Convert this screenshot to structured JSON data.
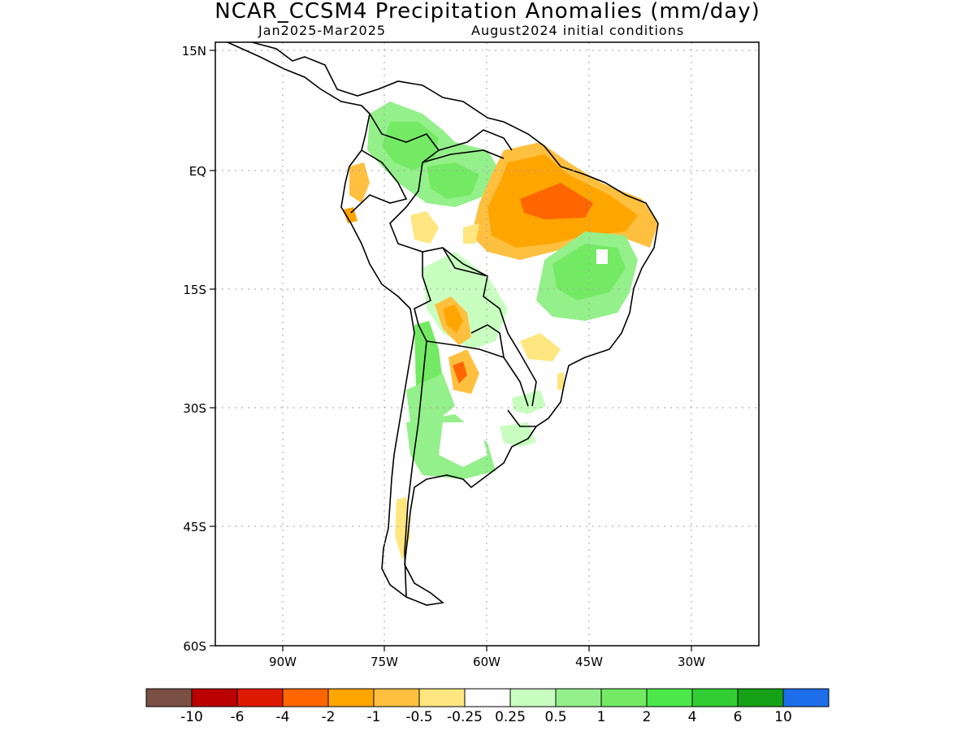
{
  "title": "NCAR_CCSM4 Precipitation Anomalies (mm/day)",
  "subtitle_left": "Jan2025-Mar2025",
  "subtitle_right": "August2024 initial conditions",
  "map": {
    "lat_labels": [
      "15N",
      "EQ",
      "15S",
      "30S",
      "45S",
      "60S"
    ],
    "lat_values": [
      15,
      0,
      -15,
      -30,
      -45,
      -60
    ],
    "lon_labels": [
      "90W",
      "75W",
      "60W",
      "45W",
      "30W"
    ],
    "lon_values": [
      -90,
      -75,
      -60,
      -45,
      -30
    ],
    "lat_range": [
      -60,
      15
    ],
    "lon_range": [
      -100,
      -20
    ],
    "grid": "dotted"
  },
  "colorbar": {
    "colors": [
      "#7a5044",
      "#bb0000",
      "#dd1a00",
      "#ff6600",
      "#ffa500",
      "#ffc040",
      "#ffe680",
      "#ffffff",
      "#c8ffc0",
      "#94f08a",
      "#74ea64",
      "#4ce84a",
      "#32cd32",
      "#16a216",
      "#1e6eeb"
    ],
    "labels": [
      "-10",
      "-6",
      "-4",
      "-2",
      "-1",
      "-0.5",
      "-0.25",
      "0.25",
      "0.5",
      "1",
      "2",
      "4",
      "6",
      "10"
    ]
  }
}
